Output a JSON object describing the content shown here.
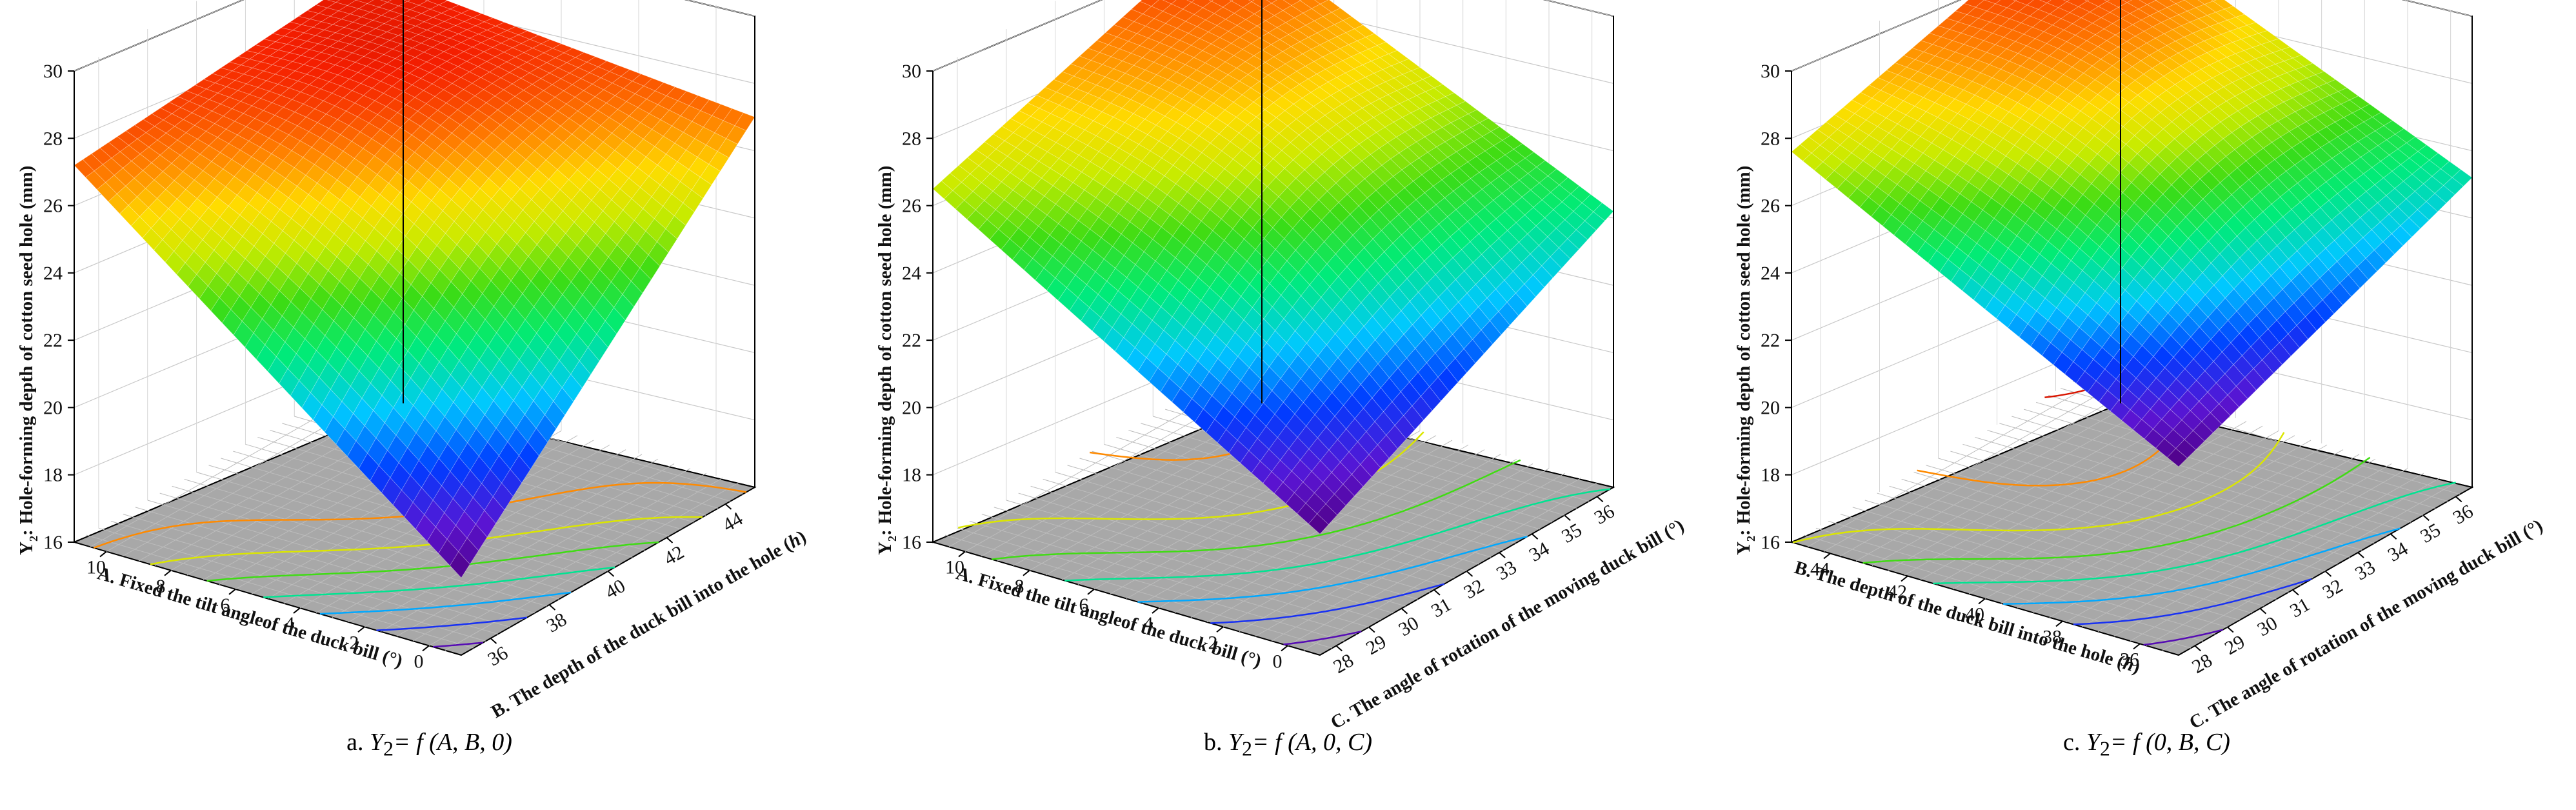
{
  "chart_data": [
    {
      "type": "surface",
      "caption": {
        "letter": "a.",
        "y": "Y",
        "sub": "2",
        "formula": "= f (A, B, 0)"
      },
      "zlabel": "Hole-forming depth of cotton seed hole (mm)",
      "zlabel_prefix": {
        "y": "Y",
        "sub": "2",
        "colon": ":"
      },
      "xlabel": "A. Fixed the tilt angleof the duck bill (°)",
      "ylabel": "B. The depth of the duck bill into the hole (",
      "ylabel_unit": "h",
      "ylabel_close": ")",
      "x_ticks": [
        "0",
        "2",
        "4",
        "6",
        "8",
        "10"
      ],
      "y_ticks": [
        "36",
        "38",
        "40",
        "42",
        "44"
      ],
      "z_ticks": [
        "16",
        "18",
        "20",
        "22",
        "24",
        "26",
        "28",
        "30"
      ],
      "xlim": [
        0,
        10
      ],
      "ylim": [
        35,
        45
      ],
      "zlim": [
        16,
        30
      ],
      "corner_values": {
        "x_min_y_min": 18.3,
        "x_max_y_min": 27.0,
        "x_min_y_max": 27.2,
        "x_max_y_max": 28.0
      },
      "max_value": 28.7,
      "min_value": 18.3,
      "colormap": "jet"
    },
    {
      "type": "surface",
      "caption": {
        "letter": "b.",
        "y": "Y",
        "sub": "2",
        "formula": "= f (A, 0, C)"
      },
      "zlabel": "Hole-forming depth of cotton seed hole (mm)",
      "zlabel_prefix": {
        "y": "Y",
        "sub": "2",
        "colon": ":"
      },
      "xlabel": "A. Fixed the tilt angleof the duck bill (°)",
      "ylabel": "C. The angle of rotation of the moving duck bill (°)",
      "ylabel_unit": "",
      "ylabel_close": "",
      "x_ticks": [
        "0",
        "2",
        "4",
        "6",
        "8",
        "10"
      ],
      "y_ticks": [
        "28",
        "29",
        "30",
        "31",
        "32",
        "33",
        "34",
        "35",
        "36"
      ],
      "z_ticks": [
        "16",
        "18",
        "20",
        "22",
        "24",
        "26",
        "28",
        "30"
      ],
      "xlim": [
        0,
        10
      ],
      "ylim": [
        27.5,
        36
      ],
      "zlim": [
        16,
        30
      ],
      "corner_values": {
        "x_min_y_min": 19.6,
        "x_max_y_min": 24.2,
        "x_min_y_max": 26.5,
        "x_max_y_max": 29.4
      },
      "max_value": 30.0,
      "min_value": 19.6,
      "colormap": "jet"
    },
    {
      "type": "surface",
      "caption": {
        "letter": "c.",
        "y": "Y",
        "sub": "2",
        "formula": "= f (0, B, C)"
      },
      "zlabel": "Hole-forming depth of cotton seed hole (mm)",
      "zlabel_prefix": {
        "y": "Y",
        "sub": "2",
        "colon": ":"
      },
      "xlabel": "B. The depth of the duck bill into the hole (",
      "xlabel_unit": "h",
      "xlabel_close": ")",
      "ylabel": "C. The angle of rotation of the moving duck bill (°)",
      "ylabel_unit": "",
      "ylabel_close": "",
      "x_ticks": [
        "36",
        "38",
        "40",
        "42",
        "44"
      ],
      "y_ticks": [
        "28",
        "29",
        "30",
        "31",
        "32",
        "33",
        "34",
        "35",
        "36"
      ],
      "z_ticks": [
        "16",
        "18",
        "20",
        "22",
        "24",
        "26",
        "28",
        "30"
      ],
      "xlim": [
        35,
        45
      ],
      "ylim": [
        27.5,
        36
      ],
      "zlim": [
        16,
        30
      ],
      "corner_values": {
        "x_min_y_min": 21.6,
        "x_max_y_min": 25.2,
        "x_min_y_max": 27.6,
        "x_max_y_max": 30.1
      },
      "max_value": 30.3,
      "min_value": 21.6,
      "colormap": "jet"
    }
  ]
}
